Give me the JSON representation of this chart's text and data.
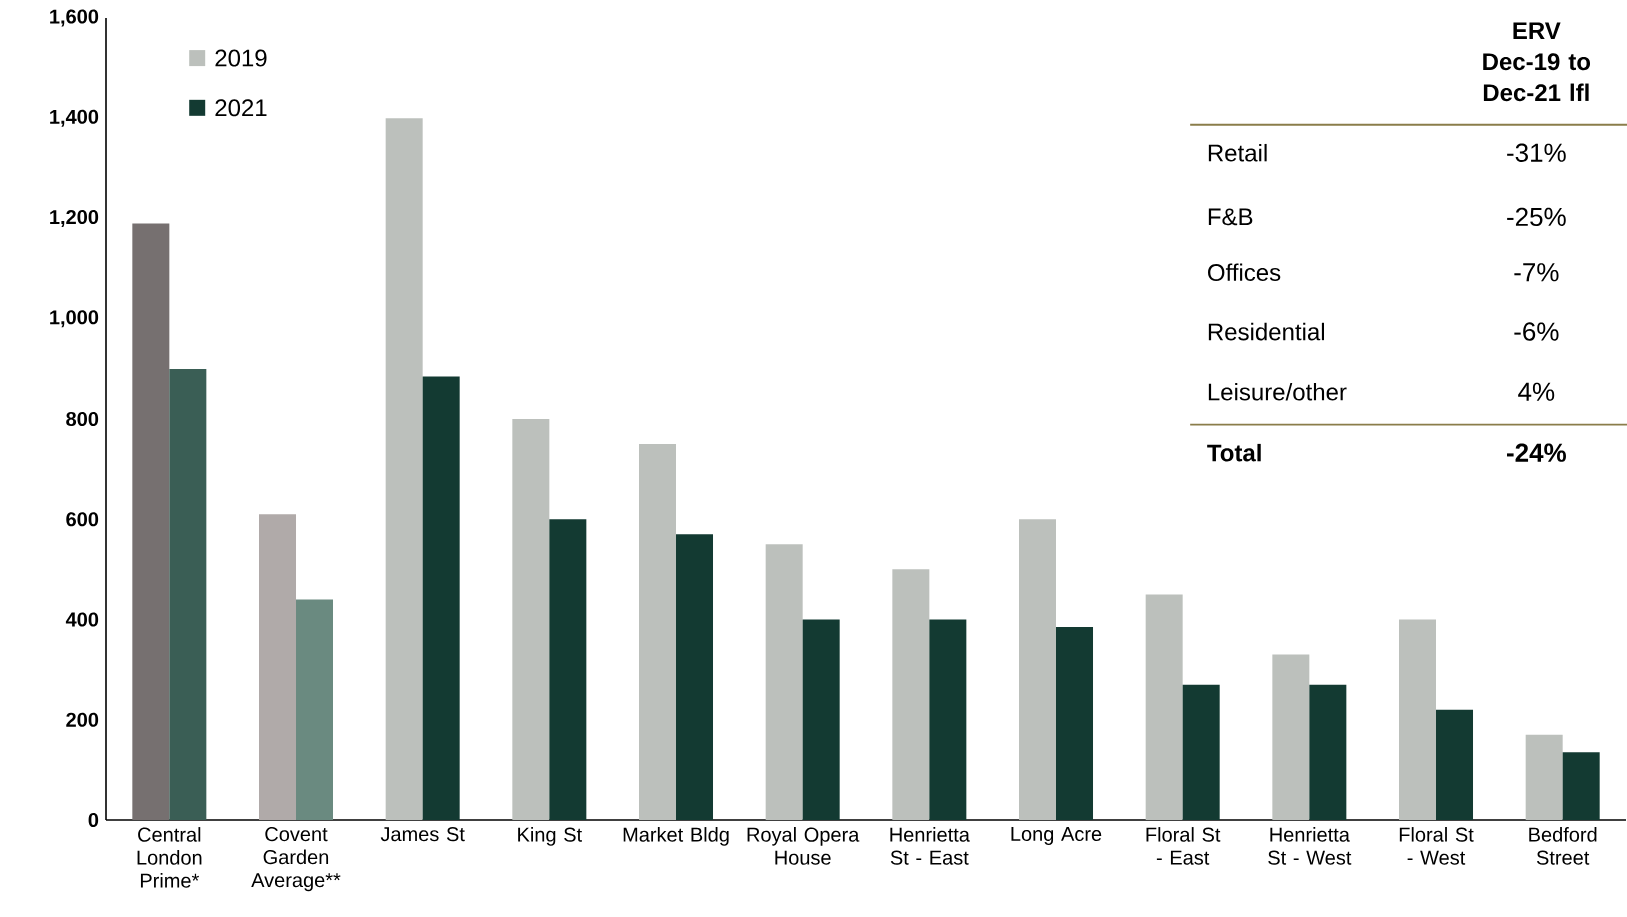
{
  "chart_data": {
    "type": "bar",
    "categories": [
      "Central London Prime*",
      "Covent Garden Average**",
      "James St",
      "King St",
      "Market Bldg",
      "Royal Opera House",
      "Henrietta St - East",
      "Long Acre",
      "Floral St - East",
      "Henrietta St - West",
      "Floral St - West",
      "Bedford Street"
    ],
    "series": [
      {
        "name": "2019",
        "colors": [
          "#767070",
          "#b0aaa9",
          "#bcc0bc",
          "#bcc0bc",
          "#bcc0bc",
          "#bcc0bc",
          "#bcc0bc",
          "#bcc0bc",
          "#bcc0bc",
          "#bcc0bc",
          "#bcc0bc",
          "#bcc0bc"
        ],
        "values": [
          1190,
          610,
          1400,
          800,
          750,
          550,
          500,
          600,
          450,
          330,
          400,
          170
        ]
      },
      {
        "name": "2021",
        "colors": [
          "#3a5e55",
          "#6a8a80",
          "#133a32",
          "#133a32",
          "#133a32",
          "#133a32",
          "#133a32",
          "#133a32",
          "#133a32",
          "#133a32",
          "#133a32",
          "#133a32"
        ],
        "values": [
          900,
          440,
          885,
          600,
          570,
          400,
          400,
          385,
          270,
          270,
          220,
          135
        ]
      }
    ],
    "ylim": [
      0,
      1600
    ],
    "yticks": [
      0,
      200,
      400,
      600,
      800,
      {
        "value": 1000,
        "label": "1,000"
      },
      {
        "value": 1200,
        "label": "1,200"
      },
      {
        "value": 1400,
        "label": "1,400"
      },
      {
        "value": 1600,
        "label": "1,600"
      }
    ],
    "legend": "top left",
    "annotations": [
      "ERV Dec-19 to Dec-21 lfl",
      "Retail",
      "-31%",
      "F&B",
      "-25%",
      "Offices",
      "-7%",
      "Residential",
      "-6%",
      "Leisure/other",
      "4%",
      "Total",
      "-24%"
    ]
  }
}
